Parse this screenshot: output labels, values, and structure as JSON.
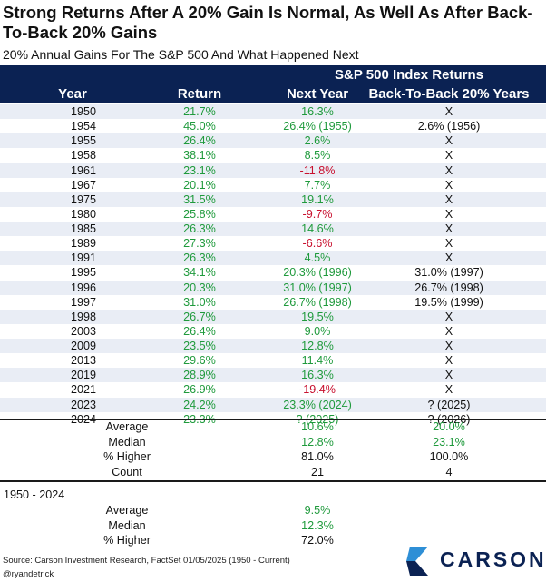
{
  "title": "Strong Returns After A 20% Gain Is Normal, As Well As After Back-To-Back 20% Gains",
  "subtitle": "20% Annual Gains For The S&P 500 And What Happened Next",
  "header": {
    "group_label": "S&P 500 Index Returns",
    "columns": [
      "Year",
      "Return",
      "Next Year",
      "Back-To-Back 20% Years"
    ]
  },
  "colors": {
    "header_bg": "#0b2253",
    "positive": "#1f9a3c",
    "negative": "#c8102e",
    "band": "#e9edf5"
  },
  "chart_data": {
    "type": "table",
    "rows": [
      {
        "year": "1950",
        "ret": "21.7%",
        "next": "16.3%",
        "next_sign": "pos",
        "b2b": "X",
        "b2b_sign": "blk"
      },
      {
        "year": "1954",
        "ret": "45.0%",
        "next": "26.4% (1955)",
        "next_sign": "pos",
        "b2b": "2.6% (1956)",
        "b2b_sign": "pos"
      },
      {
        "year": "1955",
        "ret": "26.4%",
        "next": "2.6%",
        "next_sign": "pos",
        "b2b": "X",
        "b2b_sign": "blk"
      },
      {
        "year": "1958",
        "ret": "38.1%",
        "next": "8.5%",
        "next_sign": "pos",
        "b2b": "X",
        "b2b_sign": "blk"
      },
      {
        "year": "1961",
        "ret": "23.1%",
        "next": "-11.8%",
        "next_sign": "neg",
        "b2b": "X",
        "b2b_sign": "blk"
      },
      {
        "year": "1967",
        "ret": "20.1%",
        "next": "7.7%",
        "next_sign": "pos",
        "b2b": "X",
        "b2b_sign": "blk"
      },
      {
        "year": "1975",
        "ret": "31.5%",
        "next": "19.1%",
        "next_sign": "pos",
        "b2b": "X",
        "b2b_sign": "blk"
      },
      {
        "year": "1980",
        "ret": "25.8%",
        "next": "-9.7%",
        "next_sign": "neg",
        "b2b": "X",
        "b2b_sign": "blk"
      },
      {
        "year": "1985",
        "ret": "26.3%",
        "next": "14.6%",
        "next_sign": "pos",
        "b2b": "X",
        "b2b_sign": "blk"
      },
      {
        "year": "1989",
        "ret": "27.3%",
        "next": "-6.6%",
        "next_sign": "neg",
        "b2b": "X",
        "b2b_sign": "blk"
      },
      {
        "year": "1991",
        "ret": "26.3%",
        "next": "4.5%",
        "next_sign": "pos",
        "b2b": "X",
        "b2b_sign": "blk"
      },
      {
        "year": "1995",
        "ret": "34.1%",
        "next": "20.3% (1996)",
        "next_sign": "pos",
        "b2b": "31.0% (1997)",
        "b2b_sign": "pos"
      },
      {
        "year": "1996",
        "ret": "20.3%",
        "next": "31.0% (1997)",
        "next_sign": "pos",
        "b2b": "26.7% (1998)",
        "b2b_sign": "pos"
      },
      {
        "year": "1997",
        "ret": "31.0%",
        "next": "26.7% (1998)",
        "next_sign": "pos",
        "b2b": "19.5% (1999)",
        "b2b_sign": "pos"
      },
      {
        "year": "1998",
        "ret": "26.7%",
        "next": "19.5%",
        "next_sign": "pos",
        "b2b": "X",
        "b2b_sign": "blk"
      },
      {
        "year": "2003",
        "ret": "26.4%",
        "next": "9.0%",
        "next_sign": "pos",
        "b2b": "X",
        "b2b_sign": "blk"
      },
      {
        "year": "2009",
        "ret": "23.5%",
        "next": "12.8%",
        "next_sign": "pos",
        "b2b": "X",
        "b2b_sign": "blk"
      },
      {
        "year": "2013",
        "ret": "29.6%",
        "next": "11.4%",
        "next_sign": "pos",
        "b2b": "X",
        "b2b_sign": "blk"
      },
      {
        "year": "2019",
        "ret": "28.9%",
        "next": "16.3%",
        "next_sign": "pos",
        "b2b": "X",
        "b2b_sign": "blk"
      },
      {
        "year": "2021",
        "ret": "26.9%",
        "next": "-19.4%",
        "next_sign": "neg",
        "b2b": "X",
        "b2b_sign": "blk"
      },
      {
        "year": "2023",
        "ret": "24.2%",
        "next": "23.3% (2024)",
        "next_sign": "pos",
        "b2b": "? (2025)",
        "b2b_sign": "pos"
      },
      {
        "year": "2024",
        "ret": "23.3%",
        "next": "? (2025)",
        "next_sign": "pos",
        "b2b": "? (2026)",
        "b2b_sign": "pos"
      }
    ],
    "stats": [
      {
        "label": "Average",
        "next": "10.6%",
        "b2b": "20.0%",
        "sign": "pos"
      },
      {
        "label": "Median",
        "next": "12.8%",
        "b2b": "23.1%",
        "sign": "pos"
      },
      {
        "label": "% Higher",
        "next": "81.0%",
        "b2b": "100.0%",
        "sign": "blk"
      },
      {
        "label": "Count",
        "next": "21",
        "b2b": "4",
        "sign": "blk"
      }
    ],
    "period_label": "1950 - 2024",
    "period_stats": [
      {
        "label": "Average",
        "value": "9.5%",
        "sign": "pos"
      },
      {
        "label": "Median",
        "value": "12.3%",
        "sign": "pos"
      },
      {
        "label": "% Higher",
        "value": "72.0%",
        "sign": "blk"
      }
    ]
  },
  "footer": {
    "source": "Source: Carson Investment Research, FactSet 01/05/2025 (1950 - Current)",
    "handle": "@ryandetrick",
    "logo_text": "CARSON",
    "logo_icon": "carson-chevron-logo-icon"
  }
}
